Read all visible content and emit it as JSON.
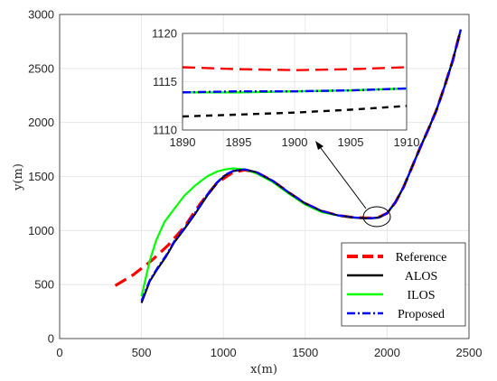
{
  "chart_data": {
    "type": "line",
    "title": "",
    "xlabel": "x(m)",
    "ylabel": "y(m)",
    "xlim": [
      0,
      2500
    ],
    "ylim": [
      0,
      3000
    ],
    "xticks": [
      "0",
      "500",
      "1000",
      "1500",
      "2000",
      "2500"
    ],
    "yticks": [
      "0",
      "500",
      "1000",
      "1500",
      "2000",
      "2500",
      "3000"
    ],
    "grid": true,
    "legend_position": "bottom-right",
    "series": [
      {
        "name": "Reference",
        "color": "#ff0000",
        "style": "dashed",
        "x": [
          340,
          450,
          560,
          660,
          760,
          860,
          960,
          1060,
          1130,
          1200,
          1300,
          1400,
          1500,
          1600,
          1700,
          1800,
          1870,
          1900,
          1950,
          2000,
          2050,
          2100,
          2150,
          2200,
          2250,
          2300,
          2350,
          2400,
          2450
        ],
        "y": [
          490,
          590,
          720,
          860,
          1030,
          1250,
          1440,
          1540,
          1560,
          1540,
          1460,
          1350,
          1250,
          1180,
          1140,
          1120,
          1117,
          1116,
          1125,
          1160,
          1260,
          1400,
          1580,
          1760,
          1930,
          2110,
          2330,
          2570,
          2860
        ]
      },
      {
        "name": "ALOS",
        "color": "#000000",
        "style": "solid",
        "x": [
          500,
          550,
          600,
          650,
          700,
          760,
          830,
          900,
          960,
          1010,
          1060,
          1130,
          1200,
          1300,
          1400,
          1500,
          1600,
          1700,
          1800,
          1870,
          1900,
          1950,
          2000,
          2050,
          2100,
          2150,
          2200,
          2250,
          2300,
          2350,
          2400,
          2450
        ],
        "y": [
          330,
          530,
          650,
          760,
          890,
          1010,
          1160,
          1320,
          1440,
          1510,
          1550,
          1565,
          1540,
          1460,
          1350,
          1250,
          1180,
          1140,
          1120,
          1113,
          1112,
          1120,
          1160,
          1260,
          1400,
          1580,
          1760,
          1930,
          2110,
          2330,
          2570,
          2860
        ]
      },
      {
        "name": "ILOS",
        "color": "#00ff00",
        "style": "solid",
        "x": [
          500,
          520,
          550,
          590,
          640,
          700,
          760,
          830,
          900,
          960,
          1010,
          1060,
          1130,
          1200,
          1300,
          1400,
          1500,
          1600,
          1700,
          1800,
          1870,
          1900,
          1950,
          2000,
          2050,
          2100,
          2150,
          2200,
          2250,
          2300,
          2350,
          2400,
          2450
        ],
        "y": [
          390,
          520,
          720,
          910,
          1080,
          1200,
          1320,
          1420,
          1500,
          1545,
          1565,
          1575,
          1565,
          1530,
          1450,
          1340,
          1240,
          1170,
          1140,
          1118,
          1114,
          1114,
          1122,
          1160,
          1260,
          1400,
          1580,
          1760,
          1930,
          2110,
          2330,
          2570,
          2860
        ]
      },
      {
        "name": "Proposed",
        "color": "#0000ff",
        "style": "dashdot",
        "x": [
          500,
          550,
          600,
          650,
          700,
          760,
          830,
          900,
          960,
          1010,
          1060,
          1130,
          1200,
          1300,
          1400,
          1500,
          1600,
          1700,
          1800,
          1870,
          1900,
          1950,
          2000,
          2050,
          2100,
          2150,
          2200,
          2250,
          2300,
          2350,
          2400,
          2450
        ],
        "y": [
          350,
          540,
          660,
          770,
          900,
          1020,
          1170,
          1330,
          1445,
          1515,
          1553,
          1566,
          1542,
          1462,
          1352,
          1252,
          1182,
          1141,
          1121,
          1114,
          1114,
          1121,
          1161,
          1261,
          1401,
          1581,
          1761,
          1931,
          2111,
          2331,
          2571,
          2861
        ]
      }
    ],
    "inset": {
      "xlim": [
        1890,
        1910
      ],
      "ylim": [
        1110,
        1120
      ],
      "xticks": [
        "1890",
        "1895",
        "1900",
        "1905",
        "1910"
      ],
      "yticks": [
        "1110",
        "1115",
        "1120"
      ],
      "grid": true,
      "series": [
        {
          "name": "Reference",
          "x": [
            1890,
            1895,
            1900,
            1905,
            1910
          ],
          "y": [
            1116.5,
            1116.3,
            1116.2,
            1116.3,
            1116.5
          ]
        },
        {
          "name": "ALOS",
          "x": [
            1890,
            1895,
            1900,
            1905,
            1910
          ],
          "y": [
            1111.4,
            1111.6,
            1111.8,
            1112.1,
            1112.5
          ]
        },
        {
          "name": "ILOS",
          "x": [
            1890,
            1895,
            1900,
            1905,
            1910
          ],
          "y": [
            1113.9,
            1113.9,
            1114.0,
            1114.1,
            1114.3
          ]
        },
        {
          "name": "Proposed",
          "x": [
            1890,
            1895,
            1900,
            1905,
            1910
          ],
          "y": [
            1113.9,
            1114.0,
            1114.0,
            1114.1,
            1114.3
          ]
        }
      ]
    },
    "annotation": {
      "type": "zoom-arrow",
      "from_point": [
        1900,
        1110
      ],
      "to_point": [
        1900,
        1116
      ]
    }
  }
}
